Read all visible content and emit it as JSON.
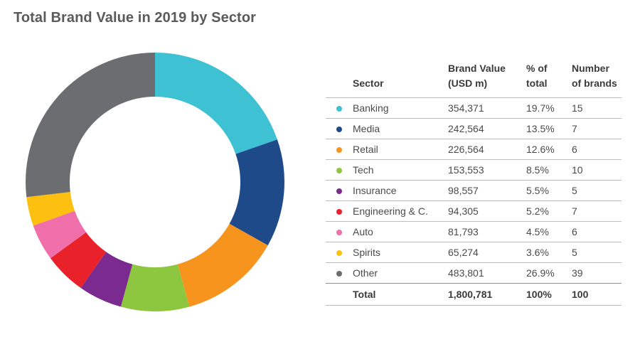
{
  "title": "Total Brand Value in 2019 by Sector",
  "table": {
    "headers": {
      "sector": "Sector",
      "value": [
        "Brand Value",
        "(USD m)"
      ],
      "pct": [
        "% of",
        "total"
      ],
      "count": [
        "Number",
        "of brands"
      ]
    },
    "total": {
      "label": "Total",
      "value": "1,800,781",
      "pct": "100%",
      "count": "100"
    }
  },
  "chart_data": {
    "type": "pie",
    "style": "donut",
    "title": "Total Brand Value in 2019 by Sector",
    "categories": [
      "Banking",
      "Media",
      "Retail",
      "Tech",
      "Insurance",
      "Engineering & C.",
      "Auto",
      "Spirits",
      "Other"
    ],
    "values": [
      354371,
      242564,
      226564,
      153553,
      98557,
      94305,
      81793,
      65274,
      483801
    ],
    "value_labels": [
      "354,371",
      "242,564",
      "226,564",
      "153,553",
      "98,557",
      "94,305",
      "81,793",
      "65,274",
      "483,801"
    ],
    "percent_labels": [
      "19.7%",
      "13.5%",
      "12.6%",
      "8.5%",
      "5.5%",
      "5.2%",
      "4.5%",
      "3.6%",
      "26.9%"
    ],
    "brand_counts": [
      "15",
      "7",
      "6",
      "10",
      "5",
      "7",
      "6",
      "5",
      "39"
    ],
    "colors": [
      "#3ec1d3",
      "#1f4a8a",
      "#f7941d",
      "#8dc63f",
      "#7b2a8f",
      "#e8212a",
      "#f06eaa",
      "#fdc010",
      "#6b6d70"
    ],
    "start": "12 o'clock",
    "direction": "clockwise"
  }
}
